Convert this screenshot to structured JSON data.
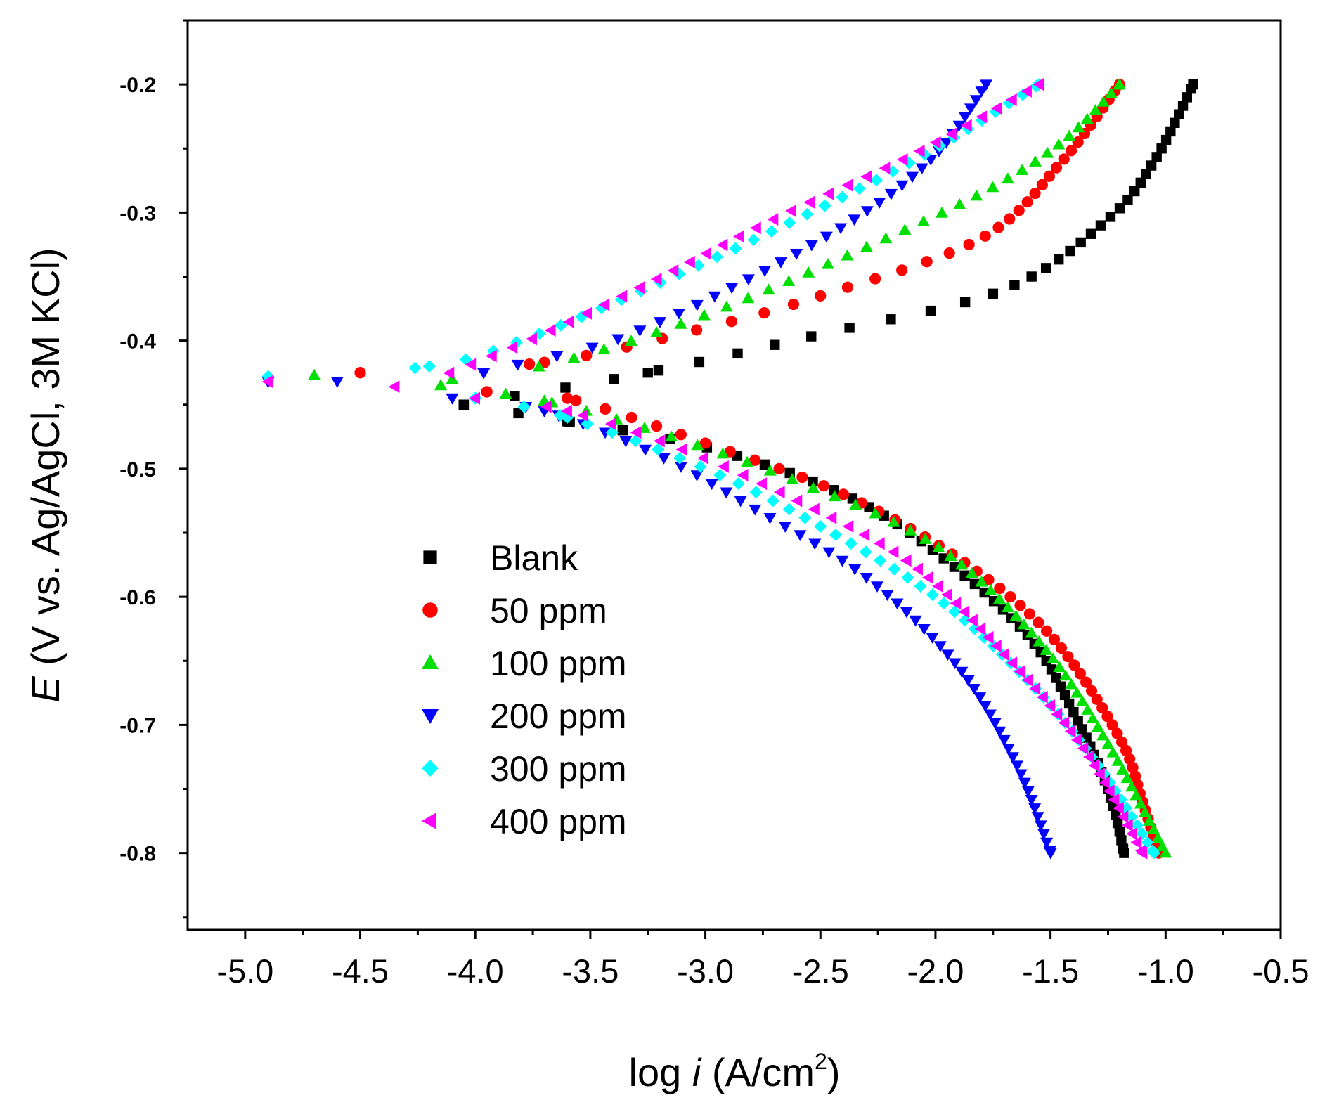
{
  "chart_data": {
    "type": "scatter",
    "title": "",
    "xlabel": {
      "prefix": "log ",
      "italic": "i",
      "units": " (A/cm",
      "superscript": "2",
      "close": ")"
    },
    "ylabel": {
      "italic": "E",
      "rest": " (V vs. Ag/AgCl, 3M KCl)"
    },
    "xlim": [
      -5.25,
      -0.5
    ],
    "ylim": [
      -0.86,
      -0.15
    ],
    "xticks": [
      -5.0,
      -4.5,
      -4.0,
      -3.5,
      -3.0,
      -2.5,
      -2.0,
      -1.5,
      -1.0,
      -0.5
    ],
    "xtick_labels": [
      "-5.0",
      "-4.5",
      "-4.0",
      "-3.5",
      "-3.0",
      "-2.5",
      "-2.0",
      "-1.5",
      "-1.0",
      "-0.5"
    ],
    "yticks": [
      -0.8,
      -0.7,
      -0.6,
      -0.5,
      -0.4,
      -0.3,
      -0.2
    ],
    "ytick_labels": [
      "-0.8",
      "-0.7",
      "-0.6",
      "-0.5",
      "-0.4",
      "-0.3",
      "-0.2"
    ],
    "grid": false,
    "legend_position": "lower-left",
    "series": [
      {
        "name": "Blank",
        "color": "#000000",
        "marker": "square",
        "ecorr": -0.45,
        "anodic": {
          "x": [
            -4.05,
            -3.25,
            -2.5,
            -1.7,
            -1.25,
            -1.05,
            -0.88
          ],
          "y": [
            -0.45,
            -0.425,
            -0.395,
            -0.36,
            -0.305,
            -0.26,
            -0.2
          ]
        },
        "cathodic": {
          "x": [
            -4.05,
            -3.6,
            -3.0,
            -2.4,
            -2.0,
            -1.6,
            -1.4,
            -1.25,
            -1.18
          ],
          "y": [
            -0.45,
            -0.463,
            -0.483,
            -0.52,
            -0.565,
            -0.63,
            -0.69,
            -0.75,
            -0.8
          ]
        }
      },
      {
        "name": "50 ppm",
        "color": "#ff0000",
        "marker": "circle",
        "ecorr": -0.43,
        "anodic": {
          "x": [
            -4.5,
            -3.7,
            -3.0,
            -2.5,
            -1.8,
            -1.45,
            -1.2
          ],
          "y": [
            -0.425,
            -0.417,
            -0.39,
            -0.365,
            -0.32,
            -0.26,
            -0.2
          ]
        },
        "cathodic": {
          "x": [
            -3.95,
            -3.6,
            -3.0,
            -2.4,
            -1.9,
            -1.5,
            -1.2,
            -1.1,
            -1.03
          ],
          "y": [
            -0.44,
            -0.445,
            -0.48,
            -0.52,
            -0.57,
            -0.63,
            -0.71,
            -0.76,
            -0.8
          ]
        }
      },
      {
        "name": "100 ppm",
        "color": "#00e000",
        "marker": "triangle-up",
        "ecorr": -0.43,
        "anodic": {
          "x": [
            -4.7,
            -4.1,
            -3.6,
            -3.0,
            -2.4,
            -1.8,
            -1.45,
            -1.2
          ],
          "y": [
            -0.427,
            -0.43,
            -0.415,
            -0.38,
            -0.335,
            -0.285,
            -0.245,
            -0.2
          ]
        },
        "cathodic": {
          "x": [
            -4.15,
            -3.7,
            -3.2,
            -2.6,
            -2.0,
            -1.55,
            -1.25,
            -1.0
          ],
          "y": [
            -0.435,
            -0.447,
            -0.472,
            -0.51,
            -0.56,
            -0.635,
            -0.715,
            -0.8
          ]
        }
      },
      {
        "name": "200 ppm",
        "color": "#0000ff",
        "marker": "triangle-down",
        "ecorr": -0.435,
        "anodic": {
          "x": [
            -4.9,
            -4.6,
            -4.3,
            -3.8,
            -3.4,
            -2.9,
            -2.35,
            -2.0,
            -1.78
          ],
          "y": [
            -0.432,
            -0.432,
            -0.438,
            -0.418,
            -0.4,
            -0.36,
            -0.305,
            -0.255,
            -0.2
          ]
        },
        "cathodic": {
          "x": [
            -4.1,
            -3.7,
            -3.2,
            -2.8,
            -2.3,
            -1.9,
            -1.65,
            -1.5
          ],
          "y": [
            -0.445,
            -0.455,
            -0.49,
            -0.53,
            -0.585,
            -0.655,
            -0.73,
            -0.8
          ]
        }
      },
      {
        "name": "300 ppm",
        "color": "#00ffff",
        "marker": "diamond",
        "ecorr": -0.43,
        "anodic": {
          "x": [
            -4.9,
            -4.2,
            -3.8,
            -3.2,
            -2.6,
            -2.05,
            -1.55
          ],
          "y": [
            -0.428,
            -0.42,
            -0.4,
            -0.355,
            -0.305,
            -0.255,
            -0.2
          ]
        },
        "cathodic": {
          "x": [
            -4.0,
            -3.6,
            -3.0,
            -2.5,
            -2.0,
            -1.6,
            -1.3,
            -1.05
          ],
          "y": [
            -0.445,
            -0.46,
            -0.5,
            -0.545,
            -0.6,
            -0.665,
            -0.73,
            -0.8
          ]
        }
      },
      {
        "name": "400 ppm",
        "color": "#ff00ff",
        "marker": "triangle-left",
        "ecorr": -0.43,
        "anodic": {
          "x": [
            -4.9,
            -4.35,
            -3.9,
            -3.3,
            -2.7,
            -2.1,
            -1.55
          ],
          "y": [
            -0.432,
            -0.436,
            -0.41,
            -0.36,
            -0.305,
            -0.255,
            -0.2
          ]
        },
        "cathodic": {
          "x": [
            -4.0,
            -3.6,
            -3.1,
            -2.6,
            -2.1,
            -1.7,
            -1.35,
            -1.1
          ],
          "y": [
            -0.445,
            -0.455,
            -0.485,
            -0.525,
            -0.575,
            -0.645,
            -0.72,
            -0.8
          ]
        }
      }
    ]
  }
}
